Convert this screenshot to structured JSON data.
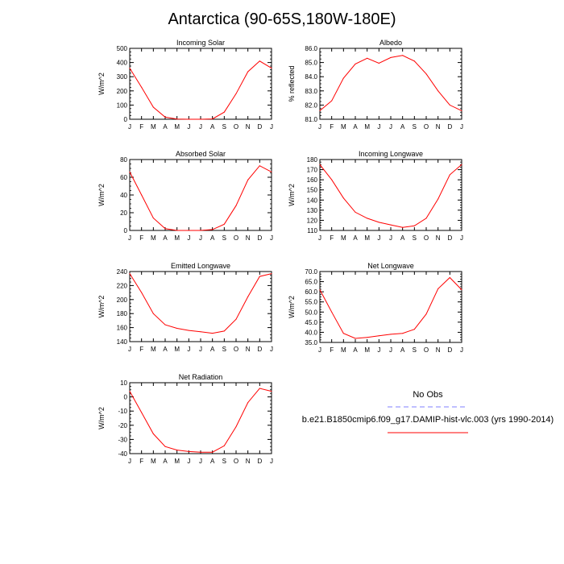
{
  "title": "Antarctica (90-65S,180W-180E)",
  "months": [
    "J",
    "F",
    "M",
    "A",
    "M",
    "J",
    "J",
    "A",
    "S",
    "O",
    "N",
    "D",
    "J"
  ],
  "legend": {
    "obs_label": "No Obs",
    "case_label": "b.e21.B1850cmip6.f09_g17.DAMIP-hist-vlc.003 (yrs 1990-2014)",
    "obs_color": "#7f7fff",
    "case_color": "#ff0000"
  },
  "chart_data": [
    {
      "type": "line",
      "title": "Incoming Solar",
      "ylabel": "W/m^2",
      "ylim": [
        0,
        500
      ],
      "yticks": [
        0,
        100,
        200,
        300,
        400,
        500
      ],
      "yticklabels": [
        "0",
        "100",
        "200",
        "300",
        "400",
        "500"
      ],
      "series": [
        {
          "color": "#ff0000",
          "values": [
            360,
            225,
            85,
            15,
            1,
            0,
            0,
            2,
            50,
            180,
            335,
            410,
            360
          ]
        }
      ]
    },
    {
      "type": "line",
      "title": "Albedo",
      "ylabel": "% reflected",
      "ylim": [
        81,
        86
      ],
      "yticks": [
        81,
        82,
        83,
        84,
        85,
        86
      ],
      "yticklabels": [
        "81.0",
        "82.0",
        "83.0",
        "84.0",
        "85.0",
        "86.0"
      ],
      "series": [
        {
          "color": "#ff0000",
          "values": [
            81.6,
            82.3,
            83.9,
            84.9,
            85.3,
            84.95,
            85.35,
            85.5,
            85.1,
            84.2,
            83.0,
            82.0,
            81.6
          ]
        }
      ]
    },
    {
      "type": "line",
      "title": "Absorbed Solar",
      "ylabel": "W/m^2",
      "ylim": [
        0,
        80
      ],
      "yticks": [
        0,
        20,
        40,
        60,
        80
      ],
      "yticklabels": [
        "0",
        "20",
        "40",
        "60",
        "80"
      ],
      "series": [
        {
          "color": "#ff0000",
          "values": [
            66,
            40,
            14,
            2,
            0,
            0,
            0,
            1,
            7,
            28,
            57,
            73,
            66
          ]
        }
      ]
    },
    {
      "type": "line",
      "title": "Incoming Longwave",
      "ylabel": "W/m^2",
      "ylim": [
        110,
        180
      ],
      "yticks": [
        110,
        120,
        130,
        140,
        150,
        160,
        170,
        180
      ],
      "yticklabels": [
        "110",
        "120",
        "130",
        "140",
        "150",
        "160",
        "170",
        "180"
      ],
      "series": [
        {
          "color": "#ff0000",
          "values": [
            175,
            160,
            142,
            128,
            122,
            118,
            115.5,
            113,
            114.5,
            122,
            141,
            165,
            175
          ]
        }
      ]
    },
    {
      "type": "line",
      "title": "Emitted Longwave",
      "ylabel": "W/m^2",
      "ylim": [
        140,
        240
      ],
      "yticks": [
        140,
        160,
        180,
        200,
        220,
        240
      ],
      "yticklabels": [
        "140",
        "160",
        "180",
        "200",
        "220",
        "240"
      ],
      "series": [
        {
          "color": "#ff0000",
          "values": [
            237,
            210,
            180,
            164,
            159,
            156,
            154,
            152,
            155,
            172,
            204,
            233,
            237
          ]
        }
      ]
    },
    {
      "type": "line",
      "title": "Net Longwave",
      "ylabel": "W/m^2",
      "ylim": [
        35,
        70
      ],
      "yticks": [
        35,
        40,
        45,
        50,
        55,
        60,
        65,
        70
      ],
      "yticklabels": [
        "35.0",
        "40.0",
        "45.0",
        "50.0",
        "55.0",
        "60.0",
        "65.0",
        "70.0"
      ],
      "series": [
        {
          "color": "#ff0000",
          "values": [
            61,
            50,
            39.5,
            37,
            37.5,
            38.3,
            39,
            39.5,
            41.5,
            49,
            61.5,
            67,
            61
          ]
        }
      ]
    },
    {
      "type": "line",
      "title": "Net Radiation",
      "ylabel": "W/m^2",
      "ylim": [
        -40,
        10
      ],
      "yticks": [
        -40,
        -30,
        -20,
        -10,
        0,
        10
      ],
      "yticklabels": [
        "-40",
        "-30",
        "-20",
        "-10",
        "0",
        "10"
      ],
      "series": [
        {
          "color": "#ff0000",
          "values": [
            4,
            -11,
            -26,
            -35,
            -37.5,
            -38.5,
            -39,
            -39,
            -34.5,
            -21,
            -4,
            6,
            4
          ]
        }
      ]
    }
  ]
}
